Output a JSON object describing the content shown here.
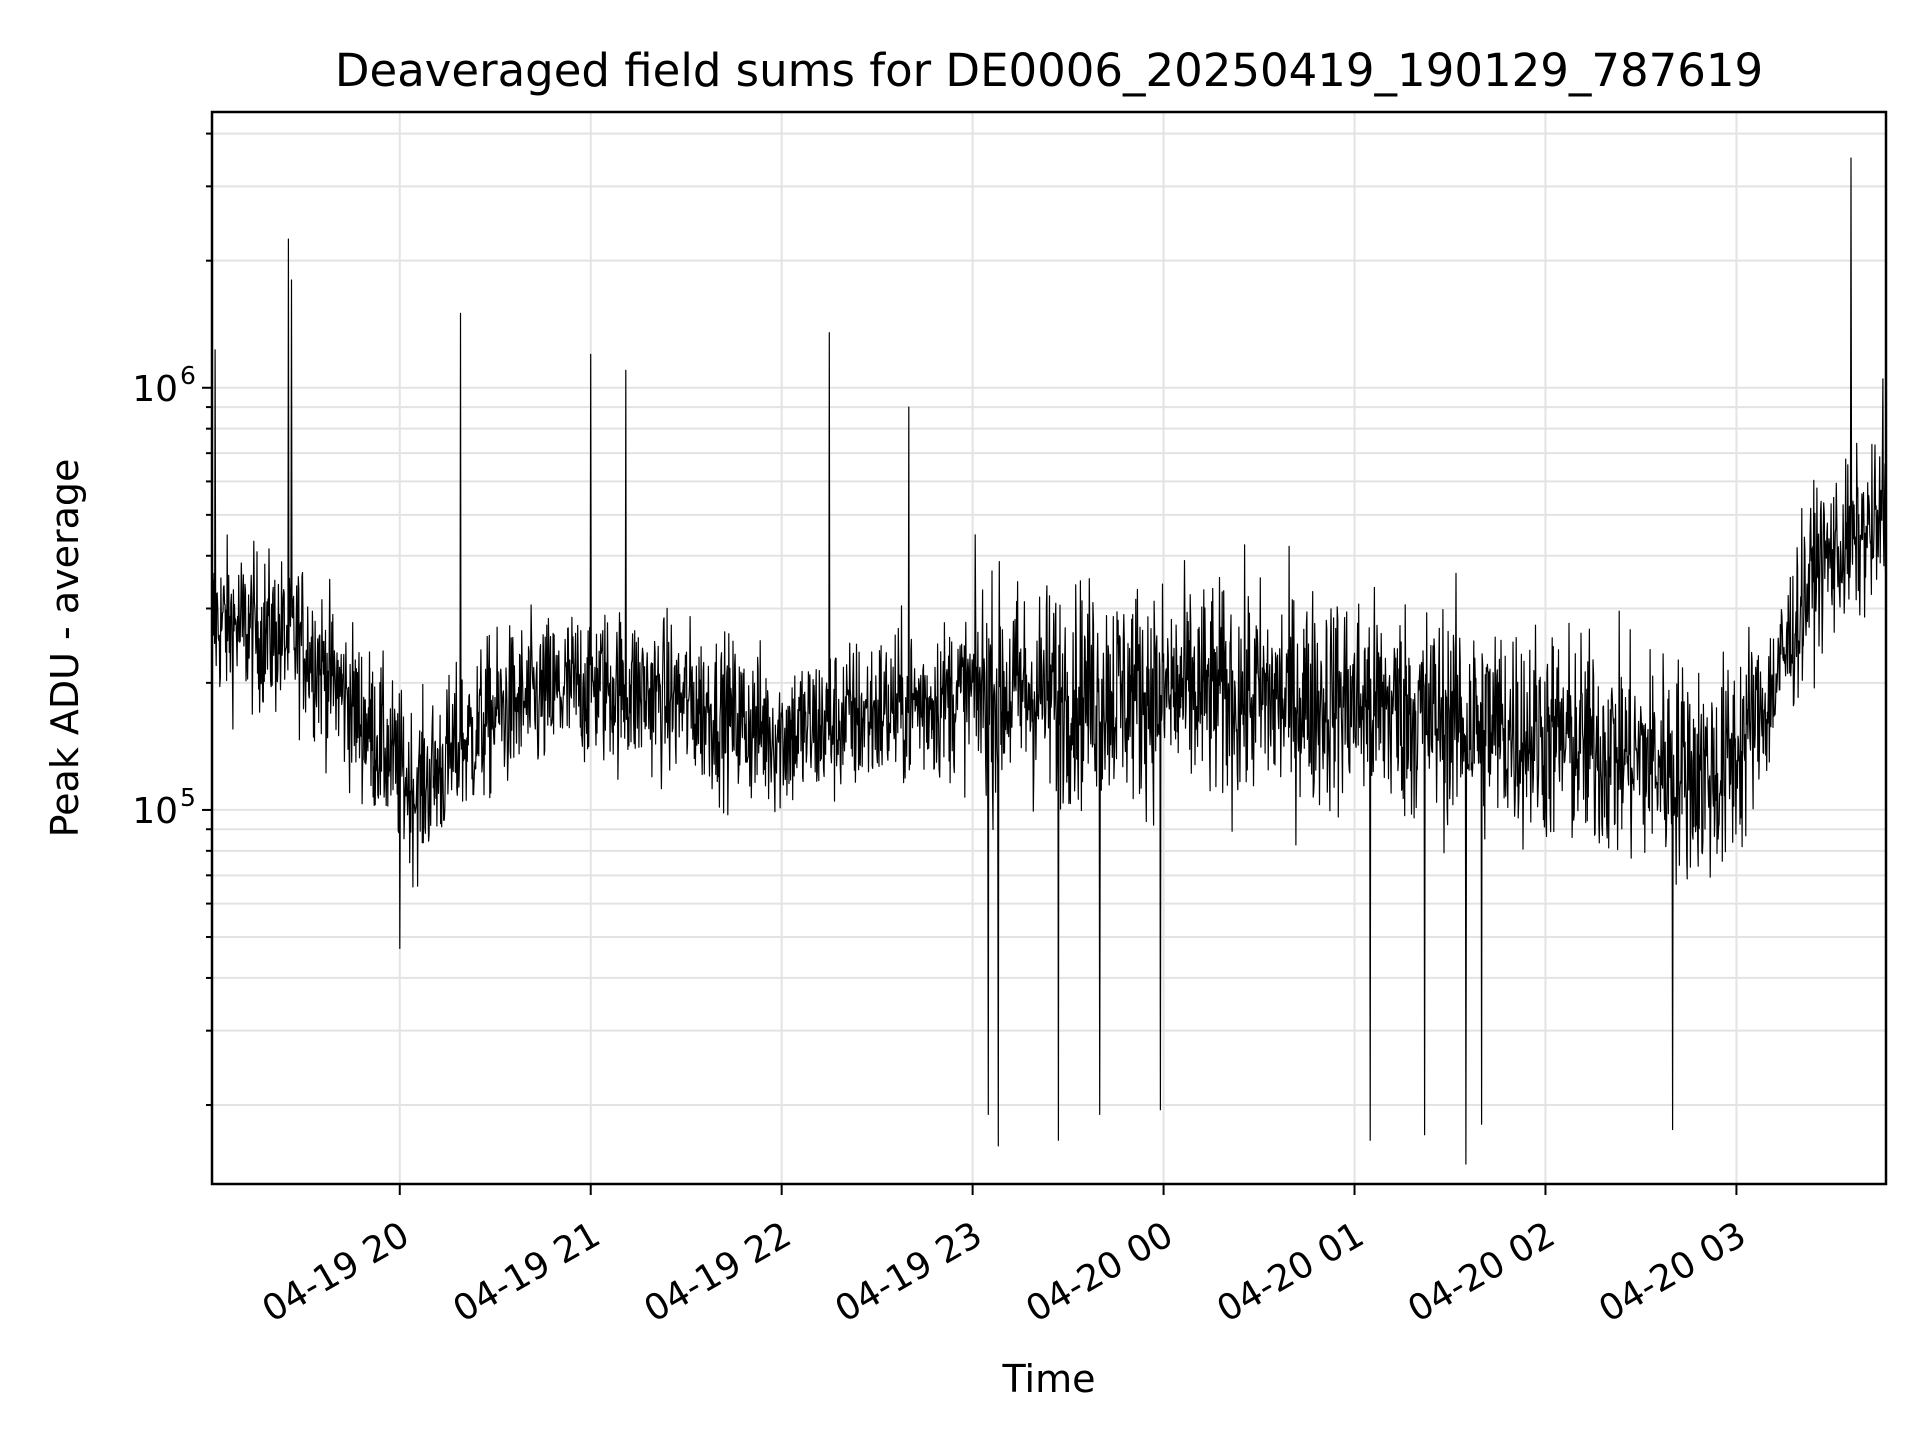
{
  "chart_data": {
    "type": "line",
    "title": "Deaveraged field sums for DE0006_20250419_190129_787619",
    "xlabel": "Time",
    "ylabel": "Peak ADU - average",
    "x_type": "datetime",
    "x_ticks": [
      "04-19 20",
      "04-19 21",
      "04-19 22",
      "04-19 23",
      "04-20 00",
      "04-20 01",
      "04-20 02",
      "04-20 03"
    ],
    "xlim": [
      "2025-04-19 19:01",
      "2025-04-20 03:47"
    ],
    "ylim": [
      13000,
      4500000
    ],
    "y_scale": "log",
    "y_ticks": [
      {
        "base": "10",
        "exp": "5",
        "value": 100000
      },
      {
        "base": "10",
        "exp": "6",
        "value": 1000000
      }
    ],
    "grid": true,
    "legend": "none",
    "series": [
      {
        "color": "#000000",
        "sampling": "approximately one sample every few seconds, values fluctuate strongly between samples",
        "x_range": [
          "2025-04-19 19:01",
          "2025-04-20 03:47"
        ],
        "trend_points": [
          {
            "x": "2025-04-19 19:01",
            "y": 280000
          },
          {
            "x": "2025-04-19 19:30",
            "y": 250000
          },
          {
            "x": "2025-04-19 19:55",
            "y": 140000
          },
          {
            "x": "2025-04-19 20:05",
            "y": 110000
          },
          {
            "x": "2025-04-19 20:30",
            "y": 170000
          },
          {
            "x": "2025-04-19 21:00",
            "y": 200000
          },
          {
            "x": "2025-04-19 21:30",
            "y": 180000
          },
          {
            "x": "2025-04-19 22:00",
            "y": 150000
          },
          {
            "x": "2025-04-19 22:30",
            "y": 170000
          },
          {
            "x": "2025-04-19 23:00",
            "y": 190000
          },
          {
            "x": "2025-04-20 00:00",
            "y": 190000
          },
          {
            "x": "2025-04-20 01:00",
            "y": 180000
          },
          {
            "x": "2025-04-20 02:00",
            "y": 150000
          },
          {
            "x": "2025-04-20 02:55",
            "y": 120000
          },
          {
            "x": "2025-04-20 03:10",
            "y": 180000
          },
          {
            "x": "2025-04-20 03:25",
            "y": 380000
          },
          {
            "x": "2025-04-20 03:47",
            "y": 480000
          }
        ],
        "spikes": [
          {
            "x": "2025-04-19 19:02",
            "y": 1230000
          },
          {
            "x": "2025-04-19 19:25",
            "y": 2250000
          },
          {
            "x": "2025-04-19 19:26",
            "y": 1800000
          },
          {
            "x": "2025-04-19 20:19",
            "y": 1500000
          },
          {
            "x": "2025-04-19 21:00",
            "y": 1200000
          },
          {
            "x": "2025-04-19 21:11",
            "y": 1100000
          },
          {
            "x": "2025-04-19 22:15",
            "y": 1350000
          },
          {
            "x": "2025-04-19 22:40",
            "y": 900000
          },
          {
            "x": "2025-04-20 03:36",
            "y": 3500000
          },
          {
            "x": "2025-04-20 03:46",
            "y": 1050000
          }
        ],
        "dips": [
          {
            "x": "2025-04-19 20:00",
            "y": 47000
          },
          {
            "x": "2025-04-19 23:05",
            "y": 19000
          },
          {
            "x": "2025-04-19 23:08",
            "y": 16000
          },
          {
            "x": "2025-04-19 23:27",
            "y": 16500
          },
          {
            "x": "2025-04-19 23:40",
            "y": 19000
          },
          {
            "x": "2025-04-19 23:59",
            "y": 19500
          },
          {
            "x": "2025-04-20 01:05",
            "y": 16500
          },
          {
            "x": "2025-04-20 01:22",
            "y": 17000
          },
          {
            "x": "2025-04-20 01:35",
            "y": 14500
          },
          {
            "x": "2025-04-20 01:40",
            "y": 18000
          },
          {
            "x": "2025-04-20 02:40",
            "y": 17500
          }
        ]
      }
    ]
  }
}
